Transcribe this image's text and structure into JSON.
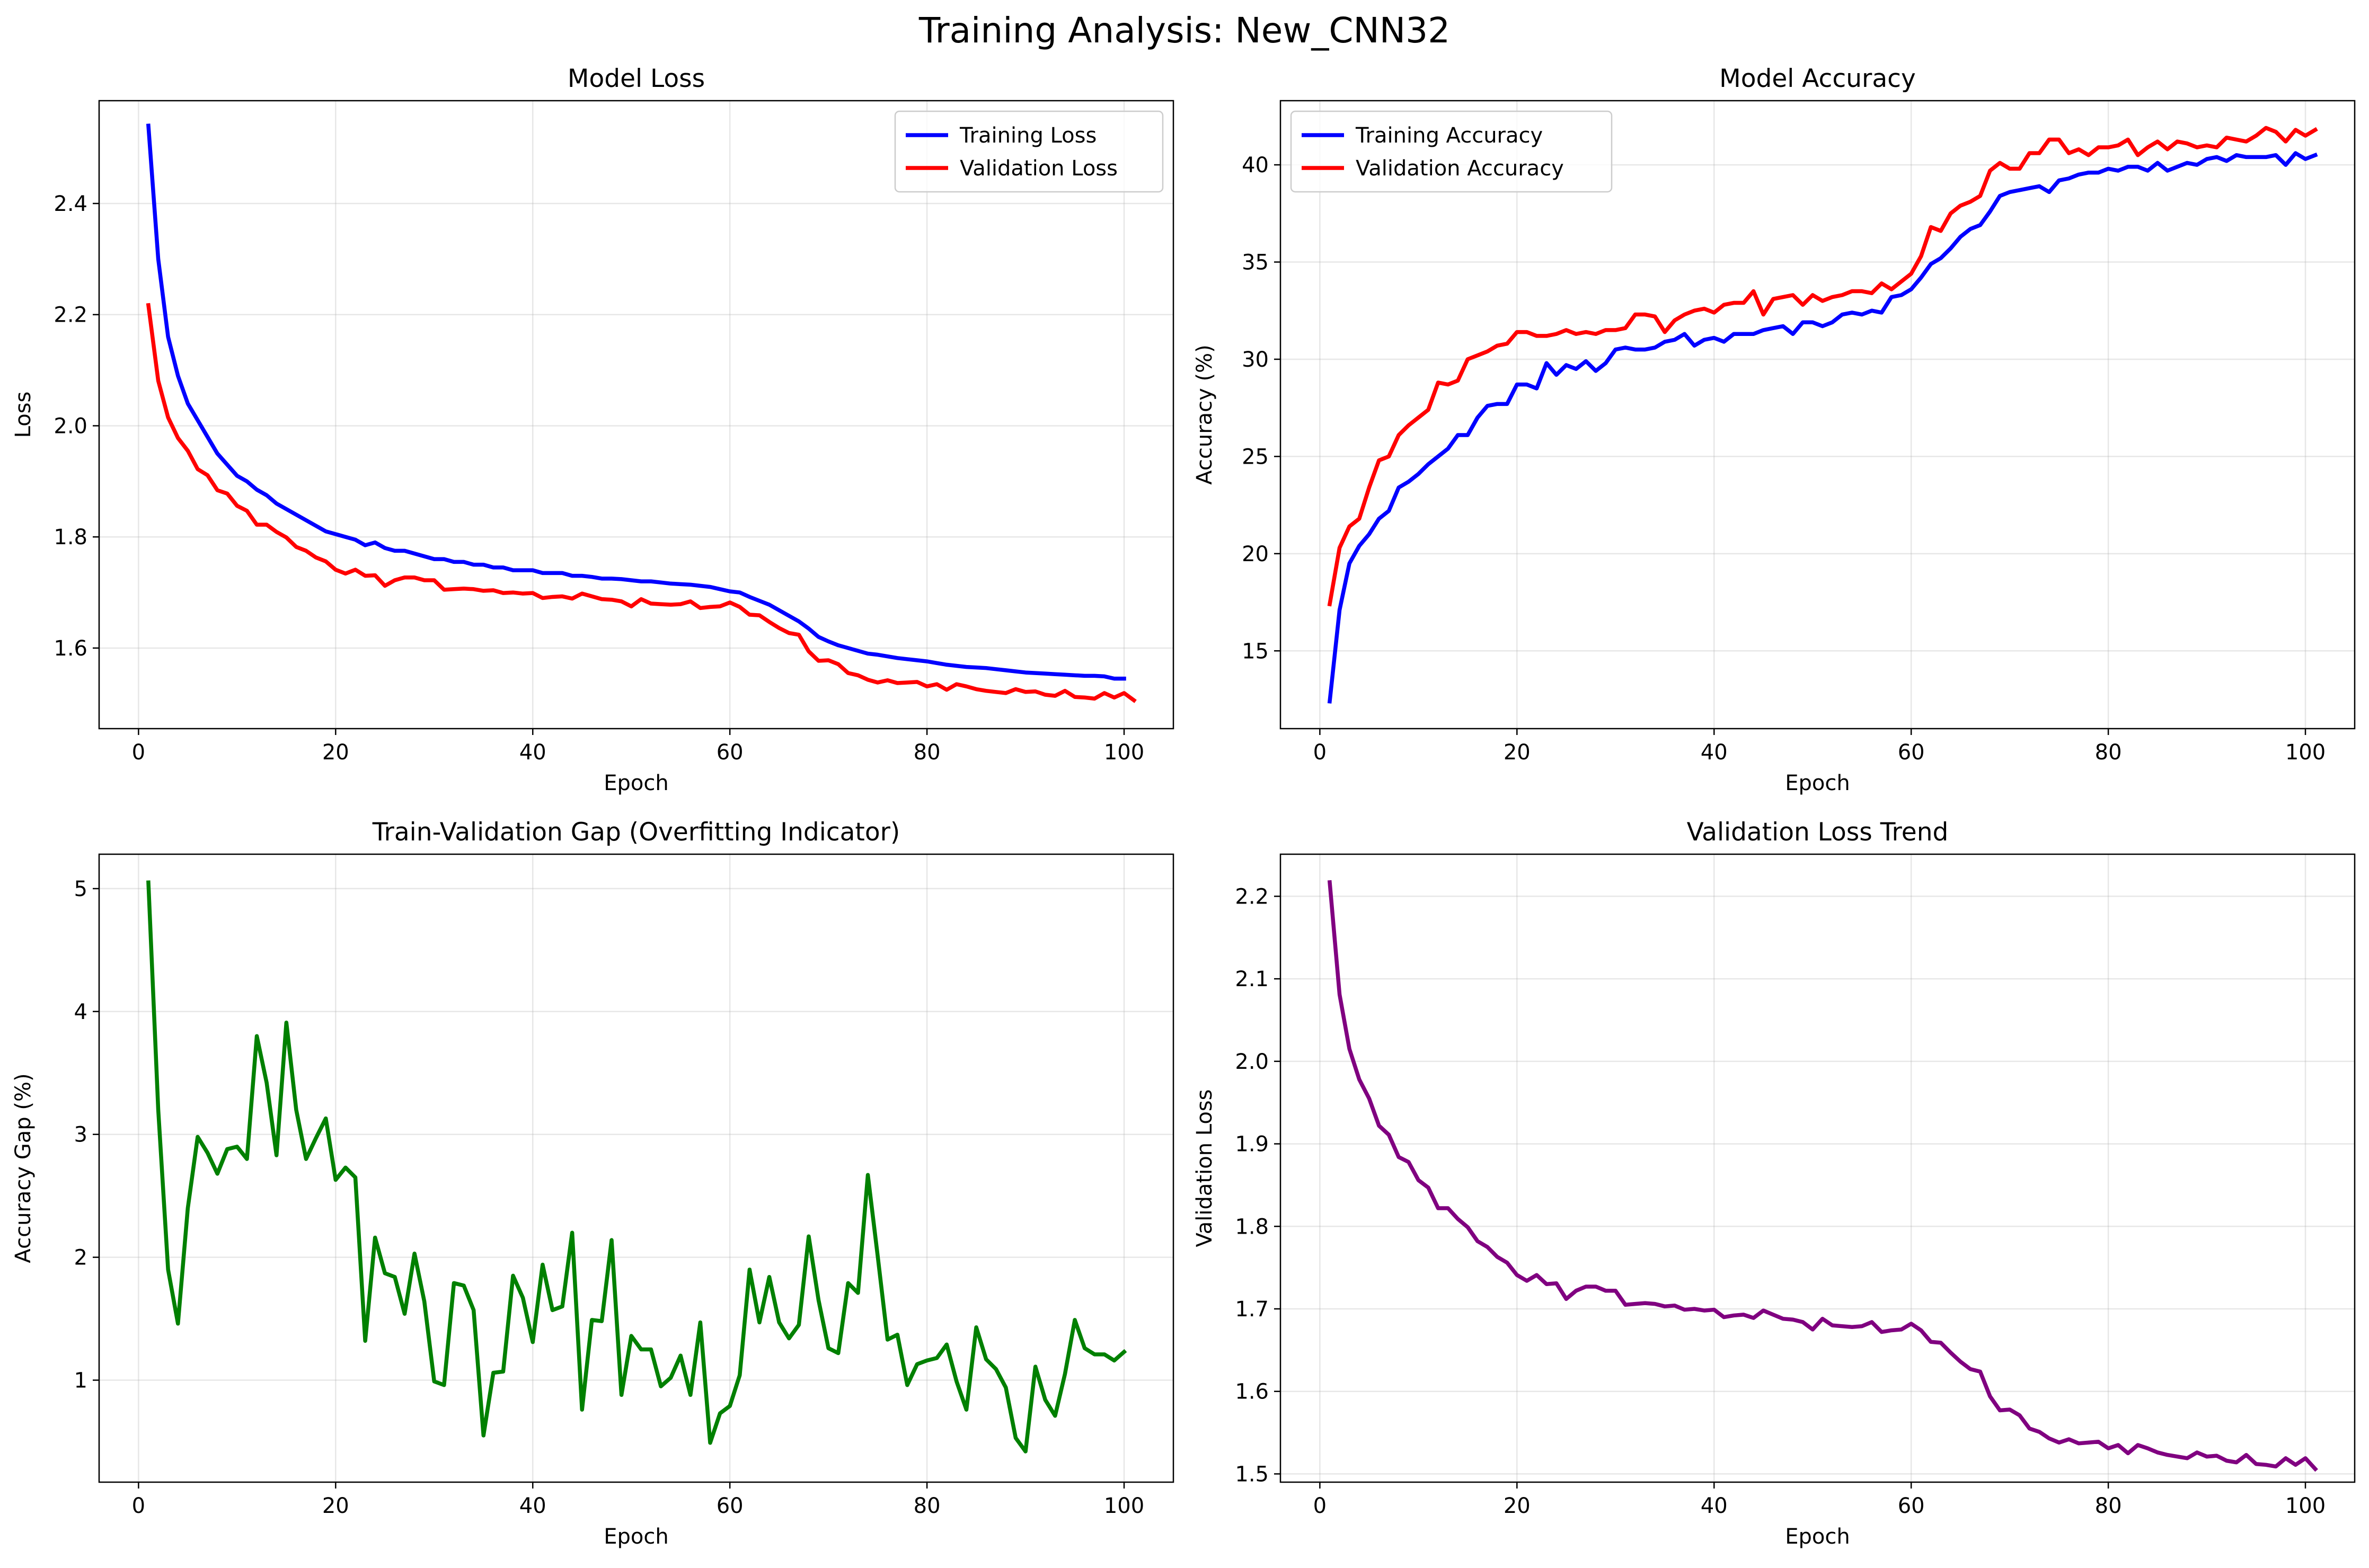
{
  "suptitle": "Training Analysis: New_CNN32",
  "chart_data": [
    {
      "type": "line",
      "title": "Model Loss",
      "xlabel": "Epoch",
      "ylabel": "Loss",
      "xlim": [
        -4,
        105
      ],
      "ylim": [
        1.455,
        2.585
      ],
      "xticks": [
        0,
        20,
        40,
        60,
        80,
        100
      ],
      "yticks": [
        1.6,
        1.8,
        2.0,
        2.2,
        2.4
      ],
      "ytick_decimals": 1,
      "grid": true,
      "legend": "upper right",
      "series": [
        {
          "name": "Training Loss",
          "color": "#0000ff",
          "values": [
            2.54,
            2.3,
            2.16,
            2.09,
            2.04,
            2.01,
            1.98,
            1.95,
            1.93,
            1.91,
            1.9,
            1.885,
            1.875,
            1.86,
            1.85,
            1.84,
            1.83,
            1.82,
            1.81,
            1.805,
            1.8,
            1.795,
            1.785,
            1.79,
            1.78,
            1.775,
            1.775,
            1.77,
            1.765,
            1.76,
            1.76,
            1.755,
            1.755,
            1.75,
            1.75,
            1.745,
            1.745,
            1.74,
            1.74,
            1.74,
            1.735,
            1.735,
            1.735,
            1.73,
            1.73,
            1.728,
            1.725,
            1.725,
            1.724,
            1.722,
            1.72,
            1.72,
            1.718,
            1.716,
            1.715,
            1.714,
            1.712,
            1.71,
            1.706,
            1.702,
            1.7,
            1.692,
            1.685,
            1.678,
            1.668,
            1.658,
            1.648,
            1.635,
            1.62,
            1.612,
            1.605,
            1.6,
            1.595,
            1.59,
            1.588,
            1.585,
            1.582,
            1.58,
            1.578,
            1.576,
            1.573,
            1.57,
            1.568,
            1.566,
            1.565,
            1.564,
            1.562,
            1.56,
            1.558,
            1.556,
            1.555,
            1.554,
            1.553,
            1.552,
            1.551,
            1.55,
            1.55,
            1.549,
            1.545,
            1.545
          ]
        },
        {
          "name": "Validation Loss",
          "color": "#ff0000",
          "values": [
            2.217,
            2.081,
            2.015,
            1.978,
            1.955,
            1.922,
            1.911,
            1.884,
            1.878,
            1.856,
            1.847,
            1.822,
            1.822,
            1.809,
            1.799,
            1.782,
            1.775,
            1.763,
            1.756,
            1.741,
            1.734,
            1.741,
            1.73,
            1.731,
            1.712,
            1.722,
            1.727,
            1.727,
            1.722,
            1.722,
            1.705,
            1.706,
            1.707,
            1.706,
            1.703,
            1.704,
            1.699,
            1.7,
            1.698,
            1.699,
            1.69,
            1.692,
            1.693,
            1.689,
            1.698,
            1.693,
            1.688,
            1.687,
            1.684,
            1.675,
            1.688,
            1.68,
            1.679,
            1.678,
            1.679,
            1.684,
            1.672,
            1.674,
            1.675,
            1.682,
            1.674,
            1.66,
            1.659,
            1.647,
            1.636,
            1.627,
            1.624,
            1.594,
            1.577,
            1.578,
            1.571,
            1.555,
            1.551,
            1.543,
            1.538,
            1.542,
            1.537,
            1.538,
            1.539,
            1.531,
            1.535,
            1.525,
            1.535,
            1.531,
            1.526,
            1.523,
            1.521,
            1.519,
            1.526,
            1.521,
            1.522,
            1.516,
            1.514,
            1.523,
            1.512,
            1.511,
            1.509,
            1.519,
            1.511,
            1.519,
            1.506
          ]
        }
      ]
    },
    {
      "type": "line",
      "title": "Model Accuracy",
      "xlabel": "Epoch",
      "ylabel": "Accuracy (%)",
      "xlim": [
        -4,
        105
      ],
      "ylim": [
        11.0,
        43.3
      ],
      "xticks": [
        0,
        20,
        40,
        60,
        80,
        100
      ],
      "yticks": [
        15,
        20,
        25,
        30,
        35,
        40
      ],
      "ytick_decimals": 0,
      "grid": true,
      "legend": "upper left",
      "series": [
        {
          "name": "Training Accuracy",
          "color": "#0000ff",
          "values": [
            12.4,
            17.1,
            19.5,
            20.4,
            21.0,
            21.8,
            22.2,
            23.4,
            23.7,
            24.1,
            24.6,
            25.0,
            25.4,
            26.1,
            26.1,
            27.0,
            27.6,
            27.7,
            27.7,
            28.7,
            28.7,
            28.5,
            29.8,
            29.2,
            29.7,
            29.5,
            29.9,
            29.4,
            29.8,
            30.5,
            30.6,
            30.5,
            30.5,
            30.6,
            30.9,
            31.0,
            31.3,
            30.7,
            31.0,
            31.1,
            30.9,
            31.3,
            31.3,
            31.3,
            31.5,
            31.6,
            31.7,
            31.3,
            31.9,
            31.9,
            31.7,
            31.9,
            32.3,
            32.4,
            32.3,
            32.5,
            32.4,
            33.2,
            33.3,
            33.6,
            34.2,
            34.9,
            35.2,
            35.7,
            36.3,
            36.7,
            36.9,
            37.6,
            38.4,
            38.6,
            38.7,
            38.8,
            38.9,
            38.6,
            39.2,
            39.3,
            39.5,
            39.6,
            39.6,
            39.8,
            39.7,
            39.9,
            39.9,
            39.7,
            40.1,
            39.7,
            39.9,
            40.1,
            40.0,
            40.3,
            40.4,
            40.2,
            40.5,
            40.4,
            40.4,
            40.4,
            40.5,
            40.0,
            40.6,
            40.3,
            40.5
          ]
        },
        {
          "name": "Validation Accuracy",
          "color": "#ff0000",
          "values": [
            17.4,
            20.3,
            21.4,
            21.8,
            23.4,
            24.8,
            25.0,
            26.1,
            26.6,
            27.0,
            27.4,
            28.8,
            28.7,
            28.9,
            30.0,
            30.2,
            30.4,
            30.7,
            30.8,
            31.4,
            31.4,
            31.2,
            31.2,
            31.3,
            31.5,
            31.3,
            31.4,
            31.3,
            31.5,
            31.5,
            31.6,
            32.3,
            32.3,
            32.2,
            31.4,
            32.0,
            32.3,
            32.5,
            32.6,
            32.4,
            32.8,
            32.9,
            32.9,
            33.5,
            32.3,
            33.1,
            33.2,
            33.3,
            32.8,
            33.3,
            33.0,
            33.2,
            33.3,
            33.5,
            33.5,
            33.4,
            33.9,
            33.6,
            34.0,
            34.4,
            35.3,
            36.8,
            36.6,
            37.5,
            37.9,
            38.1,
            38.4,
            39.7,
            40.1,
            39.8,
            39.8,
            40.6,
            40.6,
            41.3,
            41.3,
            40.6,
            40.8,
            40.5,
            40.9,
            40.9,
            41.0,
            41.3,
            40.5,
            40.9,
            41.2,
            40.8,
            41.2,
            41.1,
            40.9,
            41.0,
            40.9,
            41.4,
            41.3,
            41.2,
            41.5,
            41.9,
            41.7,
            41.2,
            41.8,
            41.5,
            41.8
          ]
        }
      ]
    },
    {
      "type": "line",
      "title": "Train-Validation Gap (Overfitting Indicator)",
      "xlabel": "Epoch",
      "ylabel": "Accuracy Gap (%)",
      "xlim": [
        -4,
        105
      ],
      "ylim": [
        0.17,
        5.28
      ],
      "xticks": [
        0,
        20,
        40,
        60,
        80,
        100
      ],
      "yticks": [
        1,
        2,
        3,
        4,
        5
      ],
      "ytick_decimals": 0,
      "grid": true,
      "legend": "none",
      "series": [
        {
          "color": "#008000",
          "values": [
            5.05,
            3.2,
            1.9,
            1.46,
            2.4,
            2.98,
            2.85,
            2.68,
            2.88,
            2.9,
            2.8,
            3.8,
            3.42,
            2.83,
            3.91,
            3.2,
            2.8,
            2.97,
            3.13,
            2.63,
            2.73,
            2.65,
            1.32,
            2.16,
            1.87,
            1.84,
            1.54,
            2.03,
            1.64,
            0.99,
            0.96,
            1.79,
            1.77,
            1.57,
            0.55,
            1.06,
            1.07,
            1.85,
            1.67,
            1.31,
            1.94,
            1.57,
            1.6,
            2.2,
            0.76,
            1.49,
            1.48,
            2.14,
            0.88,
            1.36,
            1.25,
            1.25,
            0.95,
            1.02,
            1.2,
            0.88,
            1.47,
            0.49,
            0.73,
            0.79,
            1.04,
            1.9,
            1.47,
            1.84,
            1.47,
            1.34,
            1.45,
            2.17,
            1.65,
            1.26,
            1.22,
            1.79,
            1.71,
            2.67,
            2.01,
            1.33,
            1.37,
            0.96,
            1.13,
            1.16,
            1.18,
            1.29,
            0.99,
            0.76,
            1.43,
            1.17,
            1.09,
            0.94,
            0.53,
            0.42,
            1.11,
            0.84,
            0.71,
            1.05,
            1.49,
            1.26,
            1.21,
            1.21,
            1.16,
            1.23
          ]
        }
      ]
    },
    {
      "type": "line",
      "title": "Validation Loss Trend",
      "xlabel": "Epoch",
      "ylabel": "Validation Loss",
      "xlim": [
        -4,
        105
      ],
      "ylim": [
        1.49,
        2.251
      ],
      "xticks": [
        0,
        20,
        40,
        60,
        80,
        100
      ],
      "yticks": [
        1.5,
        1.6,
        1.7,
        1.8,
        1.9,
        2.0,
        2.1,
        2.2
      ],
      "ytick_decimals": 1,
      "grid": true,
      "legend": "none",
      "series": [
        {
          "color": "#800080",
          "values": [
            2.217,
            2.081,
            2.015,
            1.978,
            1.955,
            1.922,
            1.911,
            1.884,
            1.878,
            1.856,
            1.847,
            1.822,
            1.822,
            1.809,
            1.799,
            1.782,
            1.775,
            1.763,
            1.756,
            1.741,
            1.734,
            1.741,
            1.73,
            1.731,
            1.712,
            1.722,
            1.727,
            1.727,
            1.722,
            1.722,
            1.705,
            1.706,
            1.707,
            1.706,
            1.703,
            1.704,
            1.699,
            1.7,
            1.698,
            1.699,
            1.69,
            1.692,
            1.693,
            1.689,
            1.698,
            1.693,
            1.688,
            1.687,
            1.684,
            1.675,
            1.688,
            1.68,
            1.679,
            1.678,
            1.679,
            1.684,
            1.672,
            1.674,
            1.675,
            1.682,
            1.674,
            1.66,
            1.659,
            1.647,
            1.636,
            1.627,
            1.624,
            1.594,
            1.577,
            1.578,
            1.571,
            1.555,
            1.551,
            1.543,
            1.538,
            1.542,
            1.537,
            1.538,
            1.539,
            1.531,
            1.535,
            1.525,
            1.535,
            1.531,
            1.526,
            1.523,
            1.521,
            1.519,
            1.526,
            1.521,
            1.522,
            1.516,
            1.514,
            1.523,
            1.512,
            1.511,
            1.509,
            1.519,
            1.511,
            1.519,
            1.506
          ]
        }
      ]
    }
  ]
}
